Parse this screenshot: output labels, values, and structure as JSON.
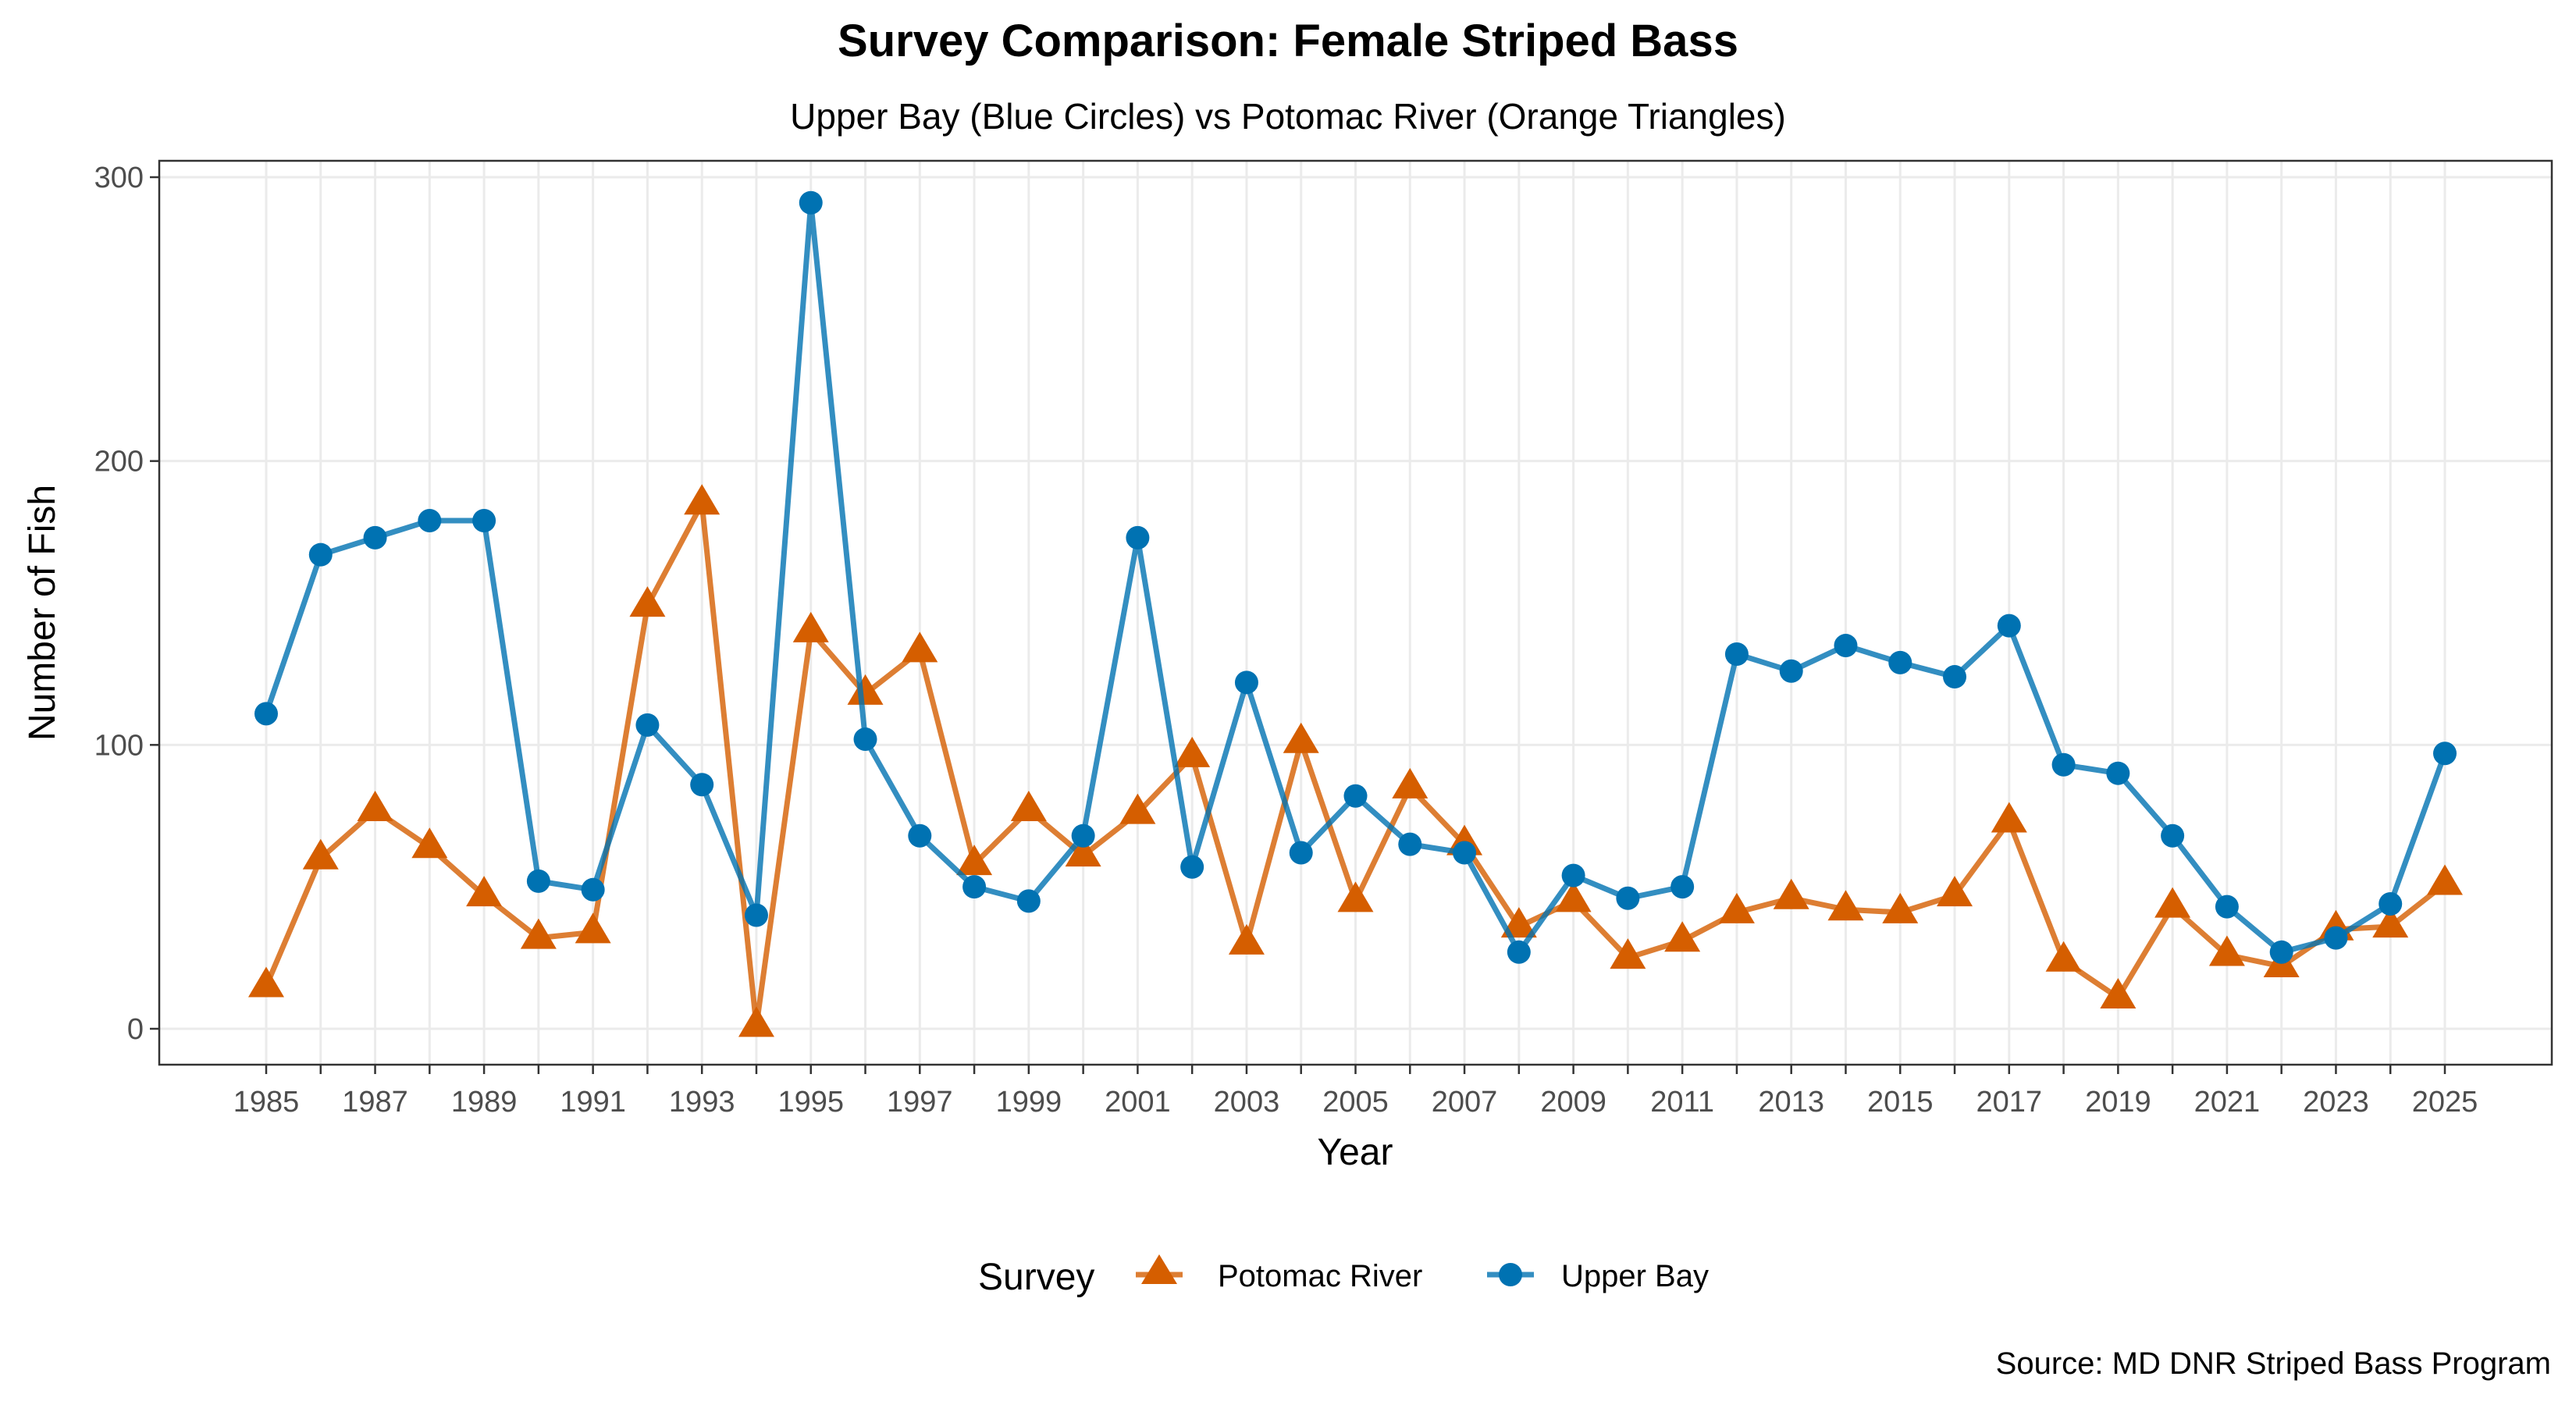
{
  "chart_data": {
    "type": "line",
    "title": "Survey Comparison: Female Striped Bass",
    "subtitle": "Upper Bay (Blue Circles) vs Potomac River (Orange Triangles)",
    "xlabel": "Year",
    "ylabel": "Number of Fish",
    "caption": "Source: MD DNR Striped Bass Program",
    "xlim": [
      1985,
      2025
    ],
    "ylim": [
      0,
      300
    ],
    "x_ticks": [
      "1985",
      "1987",
      "1989",
      "1991",
      "1993",
      "1995",
      "1997",
      "1999",
      "2001",
      "2003",
      "2005",
      "2007",
      "2009",
      "2011",
      "2013",
      "2015",
      "2017",
      "2019",
      "2021",
      "2023",
      "2025"
    ],
    "y_ticks": [
      "0",
      "100",
      "200",
      "300"
    ],
    "grid": true,
    "legend": {
      "title": "Survey",
      "position": "bottom"
    },
    "x": [
      1985,
      1986,
      1987,
      1988,
      1989,
      1990,
      1991,
      1992,
      1993,
      1994,
      1995,
      1996,
      1997,
      1998,
      1999,
      2000,
      2001,
      2002,
      2003,
      2004,
      2005,
      2006,
      2007,
      2008,
      2009,
      2010,
      2011,
      2012,
      2013,
      2014,
      2015,
      2016,
      2017,
      2018,
      2019,
      2020,
      2021,
      2022,
      2023,
      2024,
      2025
    ],
    "series": [
      {
        "name": "Potomac River",
        "marker": "triangle",
        "color": "#D55E00",
        "values": [
          15,
          60,
          77,
          64,
          47,
          32,
          34,
          149,
          185,
          1,
          140,
          118,
          133,
          58,
          77,
          61,
          76,
          96,
          30,
          101,
          45,
          85,
          65,
          36,
          45,
          25,
          31,
          41,
          46,
          42,
          41,
          47,
          73,
          24,
          11,
          43,
          26,
          22,
          35,
          36,
          51
        ]
      },
      {
        "name": "Upper Bay",
        "marker": "circle",
        "color": "#0072B2",
        "values": [
          111,
          167,
          173,
          179,
          179,
          52,
          49,
          107,
          86,
          40,
          291,
          102,
          68,
          50,
          45,
          68,
          173,
          57,
          122,
          62,
          82,
          65,
          62,
          27,
          54,
          46,
          50,
          132,
          126,
          135,
          129,
          124,
          142,
          93,
          90,
          68,
          43,
          27,
          32,
          44,
          97
        ]
      }
    ]
  }
}
